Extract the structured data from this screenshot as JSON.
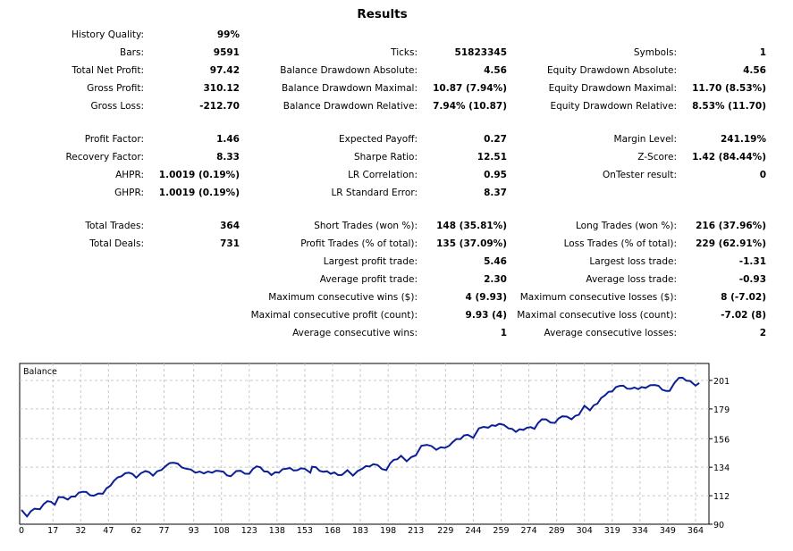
{
  "title": "Results",
  "groups": [
    [
      [
        [
          "History Quality:",
          "99%"
        ],
        null,
        null
      ],
      [
        [
          "Bars:",
          "9591"
        ],
        [
          "Ticks:",
          "51823345"
        ],
        [
          "Symbols:",
          "1"
        ]
      ],
      [
        [
          "Total Net Profit:",
          "97.42"
        ],
        [
          "Balance Drawdown Absolute:",
          "4.56"
        ],
        [
          "Equity Drawdown Absolute:",
          "4.56"
        ]
      ],
      [
        [
          "Gross Profit:",
          "310.12"
        ],
        [
          "Balance Drawdown Maximal:",
          "10.87 (7.94%)"
        ],
        [
          "Equity Drawdown Maximal:",
          "11.70 (8.53%)"
        ]
      ],
      [
        [
          "Gross Loss:",
          "-212.70"
        ],
        [
          "Balance Drawdown Relative:",
          "7.94% (10.87)"
        ],
        [
          "Equity Drawdown Relative:",
          "8.53% (11.70)"
        ]
      ]
    ],
    [
      [
        [
          "Profit Factor:",
          "1.46"
        ],
        [
          "Expected Payoff:",
          "0.27"
        ],
        [
          "Margin Level:",
          "241.19%"
        ]
      ],
      [
        [
          "Recovery Factor:",
          "8.33"
        ],
        [
          "Sharpe Ratio:",
          "12.51"
        ],
        [
          "Z-Score:",
          "1.42 (84.44%)"
        ]
      ],
      [
        [
          "AHPR:",
          "1.0019 (0.19%)"
        ],
        [
          "LR Correlation:",
          "0.95"
        ],
        [
          "OnTester result:",
          "0"
        ]
      ],
      [
        [
          "GHPR:",
          "1.0019 (0.19%)"
        ],
        [
          "LR Standard Error:",
          "8.37"
        ],
        null
      ]
    ],
    [
      [
        [
          "Total Trades:",
          "364"
        ],
        [
          "Short Trades (won %):",
          "148 (35.81%)"
        ],
        [
          "Long Trades (won %):",
          "216 (37.96%)"
        ]
      ],
      [
        [
          "Total Deals:",
          "731"
        ],
        [
          "Profit Trades (% of total):",
          "135 (37.09%)"
        ],
        [
          "Loss Trades (% of total):",
          "229 (62.91%)"
        ]
      ],
      [
        null,
        [
          "Largest profit trade:",
          "5.46"
        ],
        [
          "Largest loss trade:",
          "-1.31"
        ]
      ],
      [
        null,
        [
          "Average profit trade:",
          "2.30"
        ],
        [
          "Average loss trade:",
          "-0.93"
        ]
      ],
      [
        null,
        [
          "Maximum consecutive wins ($):",
          "4 (9.93)"
        ],
        [
          "Maximum consecutive losses ($):",
          "8 (-7.02)"
        ]
      ],
      [
        null,
        [
          "Maximal consecutive profit (count):",
          "9.93 (4)"
        ],
        [
          "Maximal consecutive loss (count):",
          "-7.02 (8)"
        ]
      ],
      [
        null,
        [
          "Average consecutive wins:",
          "1"
        ],
        [
          "Average consecutive losses:",
          "2"
        ]
      ]
    ]
  ],
  "chart_data": {
    "type": "line",
    "title": "Balance",
    "line_color": "#0a1f96",
    "grid": true,
    "xlim": [
      0,
      367
    ],
    "ylim": [
      90,
      208
    ],
    "x_ticks": [
      "0",
      "17",
      "32",
      "47",
      "62",
      "77",
      "93",
      "108",
      "123",
      "138",
      "153",
      "168",
      "183",
      "198",
      "213",
      "229",
      "244",
      "259",
      "274",
      "289",
      "304",
      "319",
      "334",
      "349",
      "364"
    ],
    "y_ticks": [
      "90",
      "112",
      "134",
      "156",
      "179",
      "201"
    ],
    "series": [
      {
        "x": [
          0,
          3,
          7,
          10,
          14,
          18,
          20,
          25,
          33,
          39,
          44,
          50,
          54,
          58,
          62,
          67,
          71,
          78,
          82,
          89,
          94,
          103,
          107,
          113,
          116,
          123,
          127,
          135,
          143,
          149,
          153,
          156,
          157,
          163,
          173,
          176,
          179,
          184,
          190,
          197,
          199,
          205,
          208,
          213,
          216,
          219,
          224,
          231,
          233,
          241,
          244,
          247,
          252,
          258,
          263,
          267,
          273,
          277,
          281,
          288,
          292,
          297,
          301,
          304,
          307,
          315,
          323,
          329,
          337,
          342,
          348,
          350,
          355,
          361,
          364,
          366
        ],
        "y": [
          101,
          96,
          102,
          101.6,
          107.8,
          105,
          110.8,
          109,
          115,
          112,
          113.6,
          123.6,
          127,
          129.8,
          125.9,
          131,
          127.5,
          135,
          137.5,
          132.8,
          129.8,
          129.8,
          131,
          127,
          131,
          128.9,
          134.7,
          128,
          132.8,
          131.7,
          132.8,
          129.8,
          134.4,
          130.5,
          128,
          131.7,
          127.5,
          132.8,
          136.3,
          131.7,
          136.8,
          142.8,
          138.6,
          143.2,
          150.6,
          151.3,
          147.4,
          150.6,
          153.6,
          159,
          156.7,
          164,
          164.5,
          167.5,
          164,
          161.3,
          164.5,
          163.6,
          171,
          168.2,
          173.3,
          171,
          174.5,
          181.4,
          178,
          189.4,
          196.8,
          194.5,
          195.2,
          197.5,
          192.9,
          192.9,
          203,
          200.6,
          197,
          199
        ]
      }
    ]
  }
}
